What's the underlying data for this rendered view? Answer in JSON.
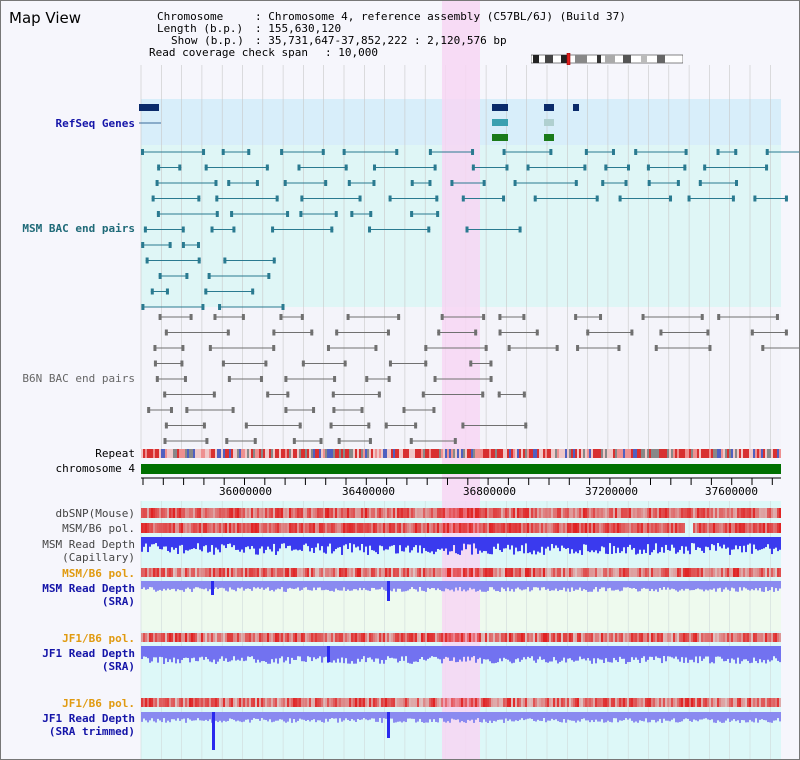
{
  "header": {
    "title": "Map View",
    "chromosome_key": "Chromosome",
    "chromosome_value": ": Chromosome 4, reference assembly (C57BL/6J) (Build 37)",
    "length_key": "Length (b.p.)",
    "length_value": ": 155,630,120",
    "show_key": "Show (b.p.)",
    "show_value": ": 35,731,647-37,852,222 : 2,120,576 bp",
    "span_key": "Read coverage check span",
    "span_value": ": 10,000"
  },
  "tracks": {
    "refseq": "RefSeq Genes",
    "msm_bac": "MSM BAC end pairs",
    "b6n_bac": "B6N BAC end pairs",
    "repeat": "Repeat",
    "chromosome": "chromosome 4",
    "dbsnp": "dbSNP(Mouse)",
    "msm_b6_pol_1": "MSM/B6 pol.",
    "msm_depth_cap_1": "MSM Read Depth",
    "msm_depth_cap_2": "(Capillary)",
    "msm_b6_pol_2": "MSM/B6 pol.",
    "msm_depth_sra_1": "MSM Read Depth",
    "msm_depth_sra_2": "(SRA)",
    "jf1_b6_pol_1": "JF1/B6 pol.",
    "jf1_depth_sra_1": "JF1 Read Depth",
    "jf1_depth_sra_2": "(SRA)",
    "jf1_b6_pol_2": "JF1/B6 pol.",
    "jf1_depth_trim_1": "JF1 Read Depth",
    "jf1_depth_trim_2": "(SRA trimmed)"
  },
  "axis": {
    "ticks": [
      "36000000",
      "36400000",
      "36800000",
      "37200000",
      "37600000"
    ]
  },
  "colors": {
    "highlight": "#f7d6f3",
    "refseq_band": "#d8eefa",
    "teal_feature": "#2a7a90",
    "gray_feature": "#707070",
    "chromosome_green": "#007000",
    "depth_blue": "#3a3aee",
    "pol_red": "#e02020"
  }
}
